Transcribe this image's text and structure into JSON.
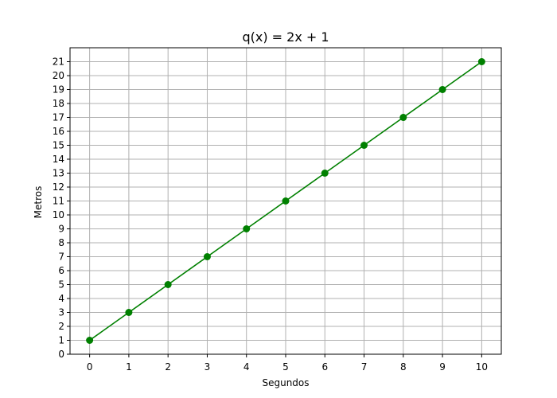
{
  "chart_data": {
    "type": "line",
    "title": "q(x) = 2x + 1",
    "xlabel": "Segundos",
    "ylabel": "Metros",
    "x": [
      0,
      1,
      2,
      3,
      4,
      5,
      6,
      7,
      8,
      9,
      10
    ],
    "series": [
      {
        "values": [
          1,
          3,
          5,
          7,
          9,
          11,
          13,
          15,
          17,
          19,
          21
        ],
        "color": "#008000",
        "marker": "circle"
      }
    ],
    "xlim": [
      -0.5,
      10.5
    ],
    "ylim": [
      0,
      22.0
    ],
    "xticks": [
      0,
      1,
      2,
      3,
      4,
      5,
      6,
      7,
      8,
      9,
      10
    ],
    "yticks": [
      0,
      1,
      2,
      3,
      4,
      5,
      6,
      7,
      8,
      9,
      10,
      11,
      12,
      13,
      14,
      15,
      16,
      17,
      18,
      19,
      20,
      21
    ],
    "grid": true,
    "grid_color": "#b0b0b0"
  }
}
